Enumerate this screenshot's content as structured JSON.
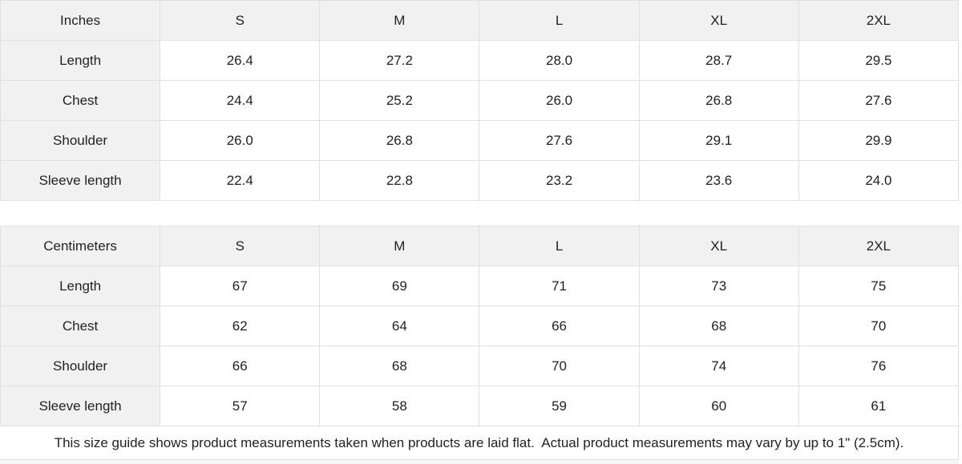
{
  "chart_data": [
    {
      "type": "table",
      "unit_label": "Inches",
      "columns": [
        "S",
        "M",
        "L",
        "XL",
        "2XL"
      ],
      "rows": [
        {
          "label": "Length",
          "values": [
            "26.4",
            "27.2",
            "28.0",
            "28.7",
            "29.5"
          ]
        },
        {
          "label": "Chest",
          "values": [
            "24.4",
            "25.2",
            "26.0",
            "26.8",
            "27.6"
          ]
        },
        {
          "label": "Shoulder",
          "values": [
            "26.0",
            "26.8",
            "27.6",
            "29.1",
            "29.9"
          ]
        },
        {
          "label": "Sleeve length",
          "values": [
            "22.4",
            "22.8",
            "23.2",
            "23.6",
            "24.0"
          ]
        }
      ]
    },
    {
      "type": "table",
      "unit_label": "Centimeters",
      "columns": [
        "S",
        "M",
        "L",
        "XL",
        "2XL"
      ],
      "rows": [
        {
          "label": "Length",
          "values": [
            "67",
            "69",
            "71",
            "73",
            "75"
          ]
        },
        {
          "label": "Chest",
          "values": [
            "62",
            "64",
            "66",
            "68",
            "70"
          ]
        },
        {
          "label": "Shoulder",
          "values": [
            "66",
            "68",
            "70",
            "74",
            "76"
          ]
        },
        {
          "label": "Sleeve length",
          "values": [
            "57",
            "58",
            "59",
            "60",
            "61"
          ]
        }
      ]
    }
  ],
  "footer": {
    "note": "This size guide shows product measurements taken when products are laid flat.  Actual product measurements may vary by up to 1\" (2.5cm)."
  },
  "colors": {
    "header_bg": "#f1f1f1",
    "border": "#e0e0e0",
    "text": "#222222"
  }
}
